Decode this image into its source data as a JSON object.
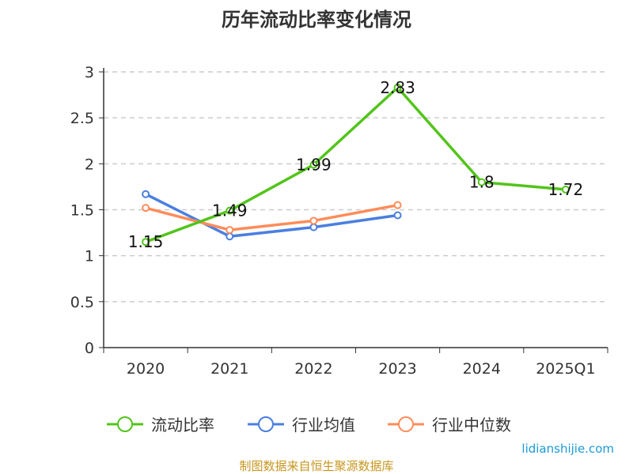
{
  "chart_data": {
    "type": "line",
    "title": "历年流动比率变化情况",
    "categories": [
      "2020",
      "2021",
      "2022",
      "2023",
      "2024",
      "2025Q1"
    ],
    "ylim": [
      0,
      3
    ],
    "yticks": [
      "0",
      "0.5",
      "1",
      "1.5",
      "2",
      "2.5",
      "3"
    ],
    "grid": true,
    "legend_position": "bottom",
    "series": [
      {
        "name": "流动比率",
        "color": "#52c41a",
        "values": [
          1.15,
          1.49,
          1.99,
          2.83,
          1.8,
          1.72
        ],
        "labels": [
          "1.15",
          "1.49",
          "1.99",
          "2.83",
          "1.8",
          "1.72"
        ]
      },
      {
        "name": "行业均值",
        "color": "#4a7fe0",
        "values": [
          1.67,
          1.21,
          1.31,
          1.44,
          null,
          null
        ]
      },
      {
        "name": "行业中位数",
        "color": "#ff8c5a",
        "values": [
          1.52,
          1.28,
          1.38,
          1.55,
          null,
          null
        ]
      }
    ]
  },
  "footer": {
    "source": "制图数据来自恒生聚源数据库",
    "watermark": "lidianshijie.com"
  }
}
